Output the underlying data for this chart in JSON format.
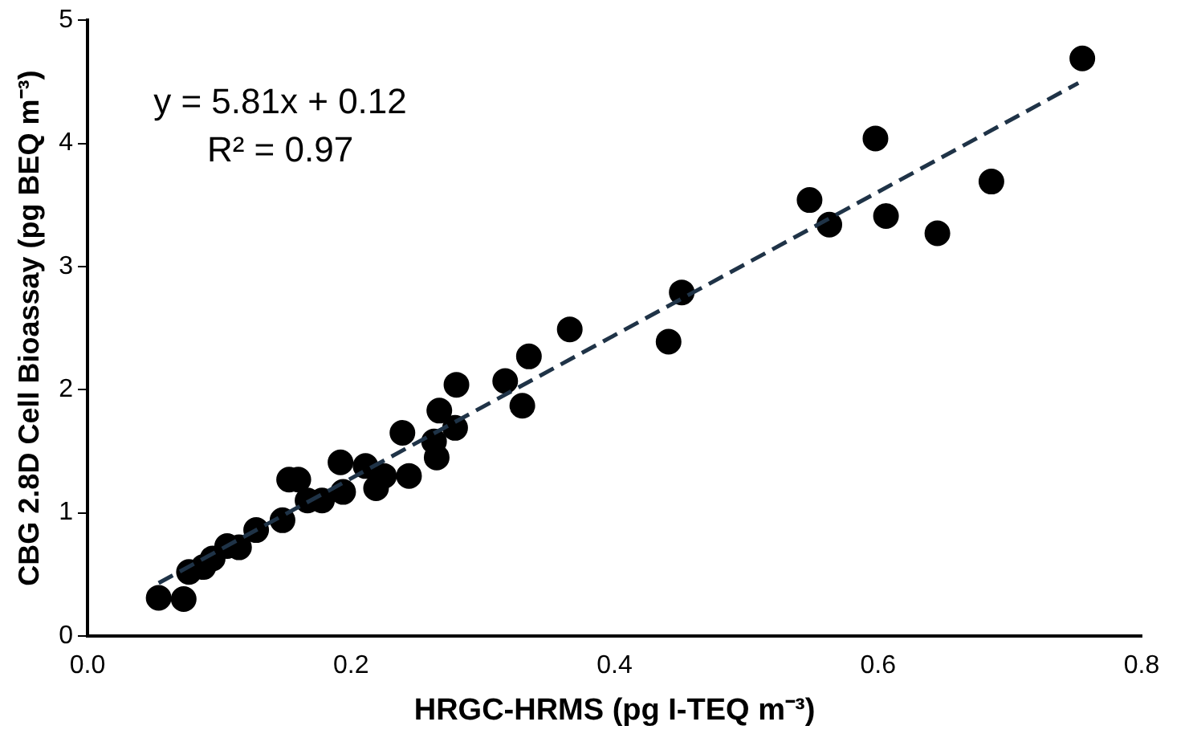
{
  "chart_data": {
    "type": "scatter",
    "xlabel": "HRGC-HRMS (pg I-TEQ m⁻³)",
    "ylabel": "CBG 2.8D Cell Bioassay (pg BEQ m⁻³)",
    "annotations": [
      "y = 5.81x + 0.12",
      "R² = 0.97"
    ],
    "xlim": [
      0,
      0.8
    ],
    "xticks": [
      {
        "value": 0,
        "label": "0.0"
      },
      {
        "value": 0.2,
        "label": "0.2"
      },
      {
        "value": 0.4,
        "label": "0.4"
      },
      {
        "value": 0.6,
        "label": "0.6"
      },
      {
        "value": 0.8,
        "label": "0.8"
      }
    ],
    "ylim": [
      0,
      5
    ],
    "yticks": [
      0,
      1,
      2,
      3,
      4,
      5
    ],
    "grid": false,
    "legend": false,
    "series": [
      {
        "color": "#000000",
        "marker": "circle",
        "x": [
          0.054,
          0.073,
          0.077,
          0.088,
          0.095,
          0.106,
          0.115,
          0.128,
          0.148,
          0.153,
          0.16,
          0.167,
          0.178,
          0.192,
          0.194,
          0.211,
          0.219,
          0.225,
          0.239,
          0.244,
          0.263,
          0.265,
          0.267,
          0.279,
          0.28,
          0.317,
          0.33,
          0.335,
          0.366,
          0.441,
          0.451,
          0.548,
          0.563,
          0.598,
          0.606,
          0.645,
          0.686,
          0.755
        ],
        "values": [
          0.31,
          0.3,
          0.52,
          0.56,
          0.63,
          0.73,
          0.72,
          0.86,
          0.94,
          1.27,
          1.27,
          1.1,
          1.1,
          1.41,
          1.17,
          1.38,
          1.2,
          1.3,
          1.65,
          1.3,
          1.58,
          1.45,
          1.83,
          1.69,
          2.04,
          2.07,
          1.87,
          2.27,
          2.49,
          2.39,
          2.79,
          3.54,
          3.34,
          4.04,
          3.41,
          3.27,
          3.69,
          4.69
        ]
      },
      {
        "type": "line",
        "color": "#1f3347",
        "line_style": "dashed",
        "marker": "none",
        "x": [
          0.054,
          0.752
        ],
        "values": [
          0.43,
          4.49
        ]
      }
    ]
  }
}
